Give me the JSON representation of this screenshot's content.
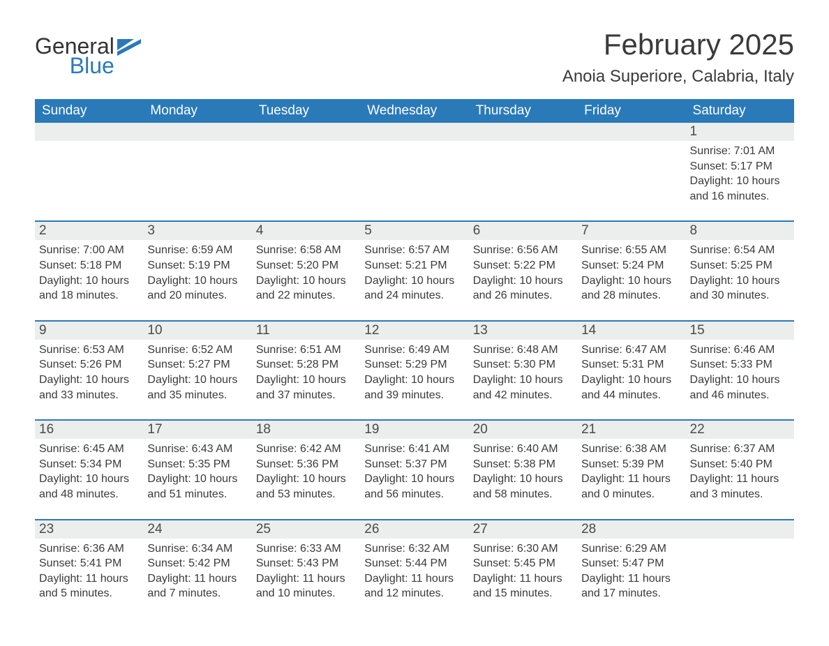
{
  "logo": {
    "word1": "General",
    "word2": "Blue"
  },
  "title": "February 2025",
  "location": "Anoia Superiore, Calabria, Italy",
  "colors": {
    "header_bg": "#2a7ab9",
    "header_text": "#ffffff",
    "daynum_bg": "#eceded",
    "text": "#3a3a3a",
    "border_top": "#2a7ab9",
    "page_bg": "#ffffff"
  },
  "typography": {
    "title_fontsize": 42,
    "location_fontsize": 24,
    "header_fontsize": 19,
    "daynum_fontsize": 19,
    "body_fontsize": 16
  },
  "day_headers": [
    "Sunday",
    "Monday",
    "Tuesday",
    "Wednesday",
    "Thursday",
    "Friday",
    "Saturday"
  ],
  "weeks": [
    [
      {
        "n": "",
        "sunrise": "",
        "sunset": "",
        "daylight": ""
      },
      {
        "n": "",
        "sunrise": "",
        "sunset": "",
        "daylight": ""
      },
      {
        "n": "",
        "sunrise": "",
        "sunset": "",
        "daylight": ""
      },
      {
        "n": "",
        "sunrise": "",
        "sunset": "",
        "daylight": ""
      },
      {
        "n": "",
        "sunrise": "",
        "sunset": "",
        "daylight": ""
      },
      {
        "n": "",
        "sunrise": "",
        "sunset": "",
        "daylight": ""
      },
      {
        "n": "1",
        "sunrise": "Sunrise: 7:01 AM",
        "sunset": "Sunset: 5:17 PM",
        "daylight": "Daylight: 10 hours and 16 minutes."
      }
    ],
    [
      {
        "n": "2",
        "sunrise": "Sunrise: 7:00 AM",
        "sunset": "Sunset: 5:18 PM",
        "daylight": "Daylight: 10 hours and 18 minutes."
      },
      {
        "n": "3",
        "sunrise": "Sunrise: 6:59 AM",
        "sunset": "Sunset: 5:19 PM",
        "daylight": "Daylight: 10 hours and 20 minutes."
      },
      {
        "n": "4",
        "sunrise": "Sunrise: 6:58 AM",
        "sunset": "Sunset: 5:20 PM",
        "daylight": "Daylight: 10 hours and 22 minutes."
      },
      {
        "n": "5",
        "sunrise": "Sunrise: 6:57 AM",
        "sunset": "Sunset: 5:21 PM",
        "daylight": "Daylight: 10 hours and 24 minutes."
      },
      {
        "n": "6",
        "sunrise": "Sunrise: 6:56 AM",
        "sunset": "Sunset: 5:22 PM",
        "daylight": "Daylight: 10 hours and 26 minutes."
      },
      {
        "n": "7",
        "sunrise": "Sunrise: 6:55 AM",
        "sunset": "Sunset: 5:24 PM",
        "daylight": "Daylight: 10 hours and 28 minutes."
      },
      {
        "n": "8",
        "sunrise": "Sunrise: 6:54 AM",
        "sunset": "Sunset: 5:25 PM",
        "daylight": "Daylight: 10 hours and 30 minutes."
      }
    ],
    [
      {
        "n": "9",
        "sunrise": "Sunrise: 6:53 AM",
        "sunset": "Sunset: 5:26 PM",
        "daylight": "Daylight: 10 hours and 33 minutes."
      },
      {
        "n": "10",
        "sunrise": "Sunrise: 6:52 AM",
        "sunset": "Sunset: 5:27 PM",
        "daylight": "Daylight: 10 hours and 35 minutes."
      },
      {
        "n": "11",
        "sunrise": "Sunrise: 6:51 AM",
        "sunset": "Sunset: 5:28 PM",
        "daylight": "Daylight: 10 hours and 37 minutes."
      },
      {
        "n": "12",
        "sunrise": "Sunrise: 6:49 AM",
        "sunset": "Sunset: 5:29 PM",
        "daylight": "Daylight: 10 hours and 39 minutes."
      },
      {
        "n": "13",
        "sunrise": "Sunrise: 6:48 AM",
        "sunset": "Sunset: 5:30 PM",
        "daylight": "Daylight: 10 hours and 42 minutes."
      },
      {
        "n": "14",
        "sunrise": "Sunrise: 6:47 AM",
        "sunset": "Sunset: 5:31 PM",
        "daylight": "Daylight: 10 hours and 44 minutes."
      },
      {
        "n": "15",
        "sunrise": "Sunrise: 6:46 AM",
        "sunset": "Sunset: 5:33 PM",
        "daylight": "Daylight: 10 hours and 46 minutes."
      }
    ],
    [
      {
        "n": "16",
        "sunrise": "Sunrise: 6:45 AM",
        "sunset": "Sunset: 5:34 PM",
        "daylight": "Daylight: 10 hours and 48 minutes."
      },
      {
        "n": "17",
        "sunrise": "Sunrise: 6:43 AM",
        "sunset": "Sunset: 5:35 PM",
        "daylight": "Daylight: 10 hours and 51 minutes."
      },
      {
        "n": "18",
        "sunrise": "Sunrise: 6:42 AM",
        "sunset": "Sunset: 5:36 PM",
        "daylight": "Daylight: 10 hours and 53 minutes."
      },
      {
        "n": "19",
        "sunrise": "Sunrise: 6:41 AM",
        "sunset": "Sunset: 5:37 PM",
        "daylight": "Daylight: 10 hours and 56 minutes."
      },
      {
        "n": "20",
        "sunrise": "Sunrise: 6:40 AM",
        "sunset": "Sunset: 5:38 PM",
        "daylight": "Daylight: 10 hours and 58 minutes."
      },
      {
        "n": "21",
        "sunrise": "Sunrise: 6:38 AM",
        "sunset": "Sunset: 5:39 PM",
        "daylight": "Daylight: 11 hours and 0 minutes."
      },
      {
        "n": "22",
        "sunrise": "Sunrise: 6:37 AM",
        "sunset": "Sunset: 5:40 PM",
        "daylight": "Daylight: 11 hours and 3 minutes."
      }
    ],
    [
      {
        "n": "23",
        "sunrise": "Sunrise: 6:36 AM",
        "sunset": "Sunset: 5:41 PM",
        "daylight": "Daylight: 11 hours and 5 minutes."
      },
      {
        "n": "24",
        "sunrise": "Sunrise: 6:34 AM",
        "sunset": "Sunset: 5:42 PM",
        "daylight": "Daylight: 11 hours and 7 minutes."
      },
      {
        "n": "25",
        "sunrise": "Sunrise: 6:33 AM",
        "sunset": "Sunset: 5:43 PM",
        "daylight": "Daylight: 11 hours and 10 minutes."
      },
      {
        "n": "26",
        "sunrise": "Sunrise: 6:32 AM",
        "sunset": "Sunset: 5:44 PM",
        "daylight": "Daylight: 11 hours and 12 minutes."
      },
      {
        "n": "27",
        "sunrise": "Sunrise: 6:30 AM",
        "sunset": "Sunset: 5:45 PM",
        "daylight": "Daylight: 11 hours and 15 minutes."
      },
      {
        "n": "28",
        "sunrise": "Sunrise: 6:29 AM",
        "sunset": "Sunset: 5:47 PM",
        "daylight": "Daylight: 11 hours and 17 minutes."
      },
      {
        "n": "",
        "sunrise": "",
        "sunset": "",
        "daylight": ""
      }
    ]
  ]
}
